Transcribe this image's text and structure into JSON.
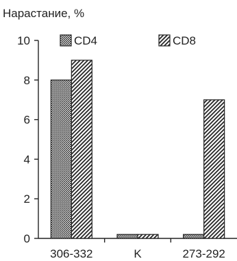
{
  "chart_data": {
    "type": "bar",
    "title": "",
    "ylabel": "Нарастание, %",
    "xlabel": "",
    "categories": [
      "306-332",
      "K",
      "273-292"
    ],
    "series": [
      {
        "name": "CD4",
        "values": [
          8,
          0.2,
          0.2
        ],
        "pattern": "dots"
      },
      {
        "name": "CD8",
        "values": [
          9,
          0.2,
          7
        ],
        "pattern": "diagonal-hatch"
      }
    ],
    "ylim": [
      0,
      10
    ],
    "yticks": [
      0,
      2,
      4,
      6,
      8,
      10
    ],
    "grid": false,
    "legend_position": "top"
  }
}
